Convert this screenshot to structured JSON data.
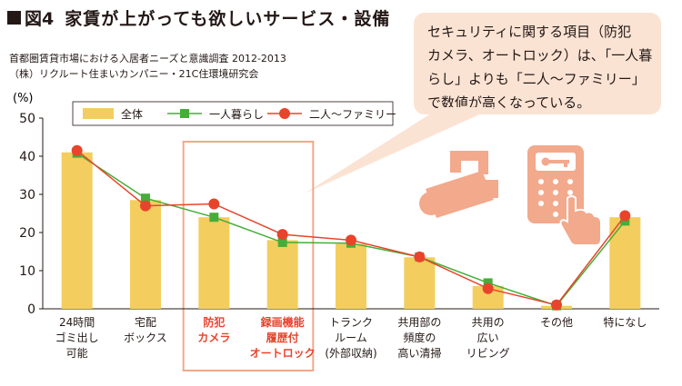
{
  "figure": {
    "label": "図4",
    "title": "家賃が上がっても欲しいサービス・設備",
    "source_lines": [
      "首都圏賃貸市場における入居者ニーズと意識調査 2012-2013",
      "（株）リクルート住まいカンパニー・21C住環境研究会"
    ]
  },
  "callout": {
    "lines": [
      "セキュリティに関する項目（防犯",
      "カメラ、オートロック）は、「一人暮",
      "らし」よりも「二人〜ファミリー」",
      "で数値が高くなっている。"
    ]
  },
  "colors": {
    "bar": "#f3cd5e",
    "single": "#46ad3a",
    "family": "#e8442c",
    "highlight": "#f0a88a",
    "callout_bg": "#fbe3d4",
    "icon": "#f2a98c",
    "text": "#231815"
  },
  "icons": [
    "security-camera-icon",
    "keypad-lock-icon"
  ],
  "chart_data": {
    "type": "bar",
    "unit": "(%)",
    "ylim": [
      0,
      50
    ],
    "yticks": [
      0,
      10,
      20,
      30,
      40,
      50
    ],
    "grid": false,
    "legend_position": "top",
    "categories": [
      [
        "24時間",
        "ゴミ出し",
        "可能"
      ],
      [
        "宅配",
        "ボックス"
      ],
      [
        "防犯",
        "カメラ"
      ],
      [
        "録画機能",
        "履歴付",
        "オートロック"
      ],
      [
        "トランク",
        "ルーム",
        "(外部収納)"
      ],
      [
        "共用部の",
        "頻度の",
        "高い清掃"
      ],
      [
        "共用の",
        "広い",
        "リビング"
      ],
      [
        "その他"
      ],
      [
        "特になし"
      ]
    ],
    "highlighted_categories": [
      2,
      3
    ],
    "series": [
      {
        "name": "全体",
        "type": "bar",
        "values": [
          41,
          28.5,
          24,
          18,
          17,
          13.5,
          6,
          0.8,
          24
        ]
      },
      {
        "name": "一人暮らし",
        "type": "line",
        "values": [
          40.8,
          29,
          24,
          17.4,
          17.2,
          13.6,
          6.8,
          0.8,
          23
        ]
      },
      {
        "name": "二人〜ファミリー",
        "type": "line",
        "values": [
          41.5,
          27,
          27.5,
          19.5,
          18,
          13.6,
          5.3,
          1.0,
          24.4
        ]
      }
    ]
  }
}
